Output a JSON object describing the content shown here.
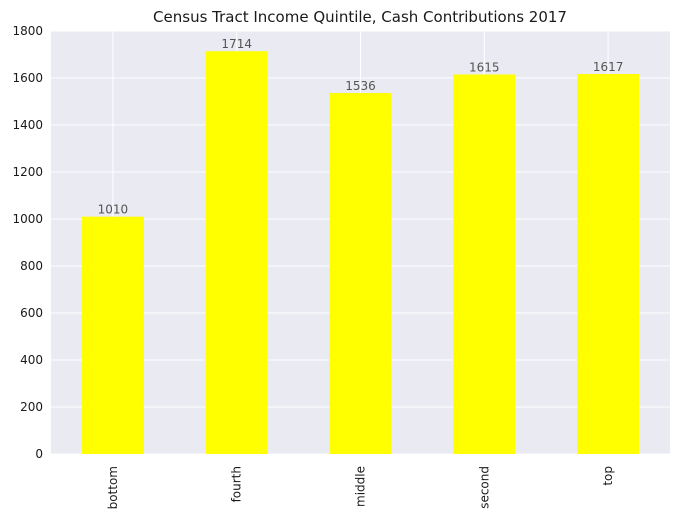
{
  "chart_data": {
    "type": "bar",
    "title": "Census Tract Income Quintile, Cash Contributions 2017",
    "xlabel": "",
    "ylabel": "",
    "categories": [
      "bottom",
      "fourth",
      "middle",
      "second",
      "top"
    ],
    "values": [
      1010,
      1714,
      1536,
      1615,
      1617
    ],
    "data_labels": [
      "1010",
      "1714",
      "1536",
      "1615",
      "1617"
    ],
    "ylim": [
      0,
      1800
    ],
    "yticks": [
      0,
      200,
      400,
      600,
      800,
      1000,
      1200,
      1400,
      1600,
      1800
    ],
    "ytick_labels": [
      "0",
      "200",
      "400",
      "600",
      "800",
      "1000",
      "1200",
      "1400",
      "1600",
      "1800"
    ],
    "grid": true,
    "legend": "none",
    "colors": {
      "bar": "#ffff00",
      "plot_background": "#eaeaf2",
      "grid": "#ffffff",
      "text": "#1a1a1a",
      "value_label": "#555555"
    }
  }
}
